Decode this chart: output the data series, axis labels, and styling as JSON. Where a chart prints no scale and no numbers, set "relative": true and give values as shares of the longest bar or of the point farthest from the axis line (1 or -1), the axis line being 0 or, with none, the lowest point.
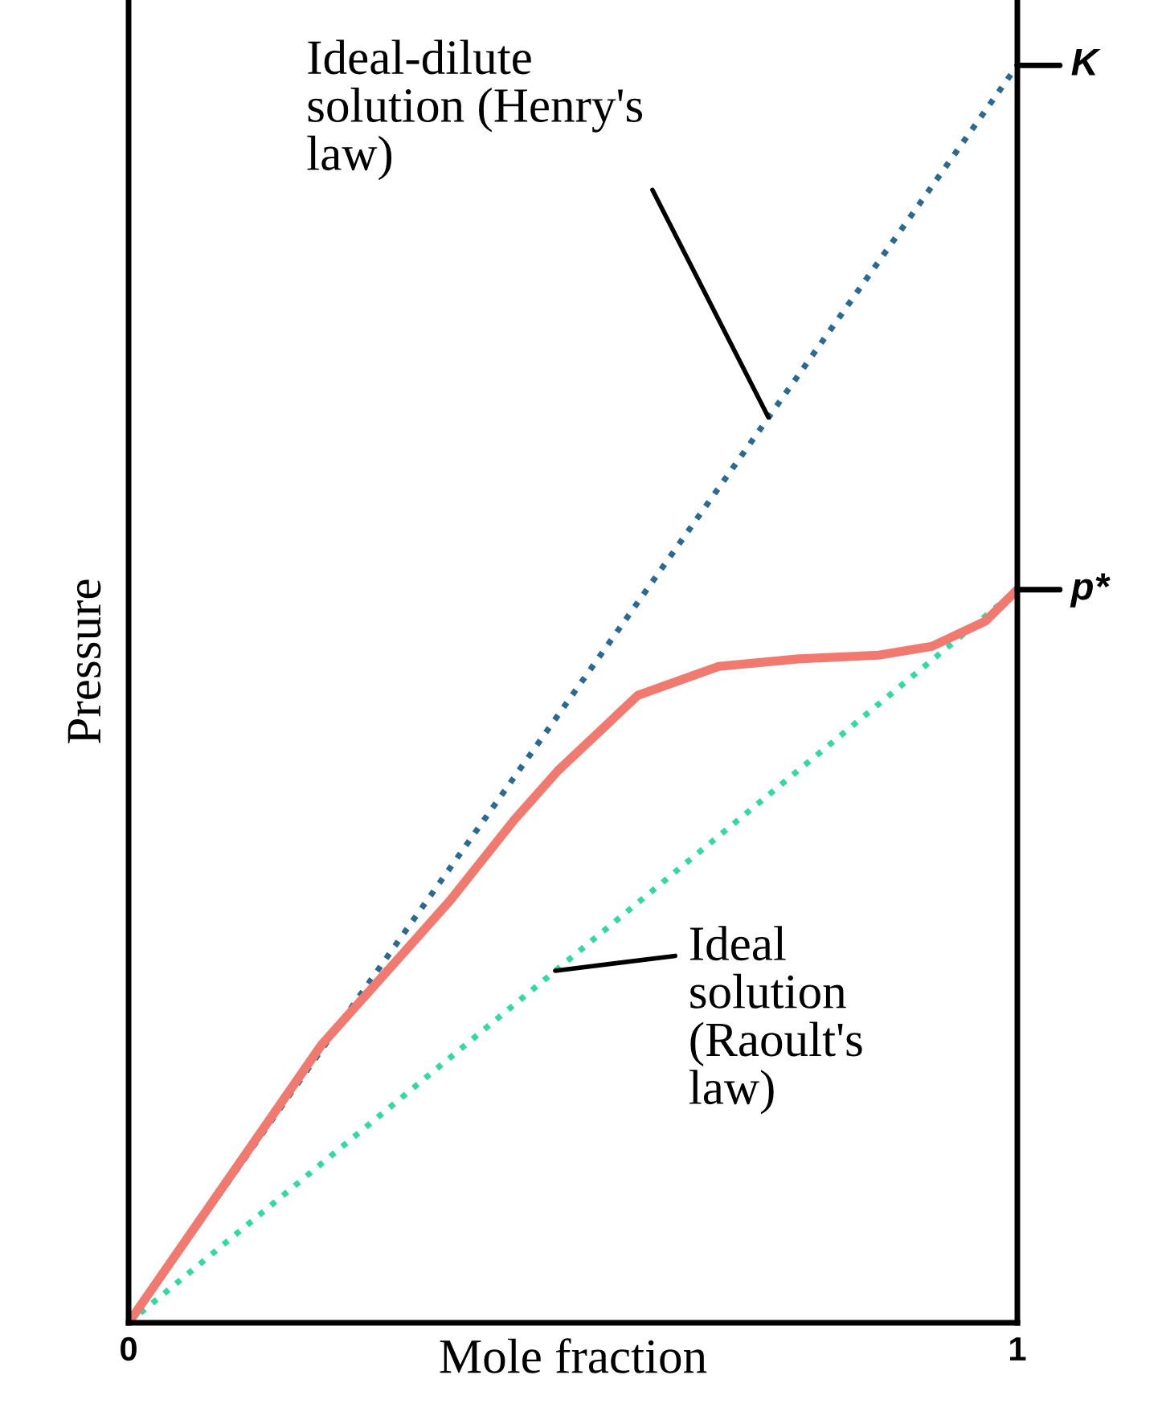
{
  "chart_data": {
    "type": "line",
    "xlabel": "Mole fraction",
    "ylabel": "Pressure",
    "relative": true,
    "xlim": [
      0,
      1
    ],
    "xticks": [
      0,
      1
    ],
    "legend": false,
    "series": [
      {
        "x": [
          0,
          1
        ],
        "values": [
          0,
          1
        ],
        "color": "#2a6a90",
        "line_style": "dotted"
      },
      {
        "x": [
          0,
          1
        ],
        "values": [
          0,
          0.583
        ],
        "color": "#33d9a0",
        "line_style": "dotted"
      },
      {
        "x": [
          0,
          0.108,
          0.217,
          0.362,
          0.434,
          0.483,
          0.573,
          0.664,
          0.754,
          0.844,
          0.904,
          0.964,
          1.0
        ],
        "values": [
          0,
          0.11,
          0.221,
          0.336,
          0.4,
          0.439,
          0.499,
          0.522,
          0.528,
          0.531,
          0.538,
          0.558,
          0.583
        ],
        "color": "#f07a70",
        "line_style": "solid"
      }
    ],
    "annotations": [
      {
        "text": "Ideal-dilute\nsolution (Henry's\nlaw)",
        "x": 0.72,
        "y": 0.72
      },
      {
        "text": "Ideal\nsolution\n(Raoult's\nlaw)",
        "x": 0.48,
        "y": 0.28
      },
      {
        "text": "K",
        "x": 1,
        "y": 1
      },
      {
        "text": "p*",
        "x": 1,
        "y": 0.583
      }
    ]
  }
}
